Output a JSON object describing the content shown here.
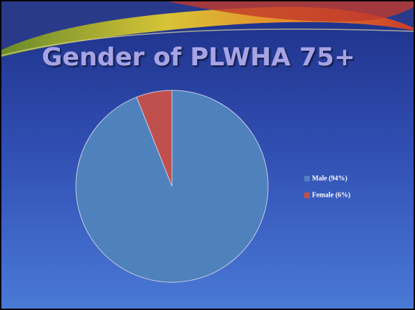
{
  "chart_data": {
    "type": "pie",
    "title": "Gender of PLWHA 75+",
    "categories": [
      "Male (94%)",
      "Female (6%)"
    ],
    "values": [
      94,
      6
    ],
    "colors": [
      "#4f81bd",
      "#c0504d"
    ]
  }
}
